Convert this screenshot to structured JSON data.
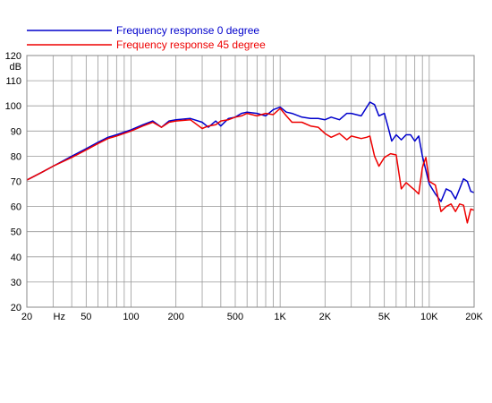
{
  "chart_data": {
    "type": "line",
    "title": "",
    "xlabel": "",
    "ylabel": "dB",
    "x_scale": "log",
    "xlim": [
      20,
      20000
    ],
    "ylim": [
      20,
      120
    ],
    "grid": true,
    "legend_position": "top",
    "y_ticks": [
      20,
      30,
      40,
      50,
      60,
      70,
      80,
      90,
      100,
      110,
      120
    ],
    "x_tick_labels": [
      {
        "value": 20,
        "label": "20"
      },
      {
        "value": 33,
        "label": "Hz"
      },
      {
        "value": 50,
        "label": "50"
      },
      {
        "value": 100,
        "label": "100"
      },
      {
        "value": 200,
        "label": "200"
      },
      {
        "value": 500,
        "label": "500"
      },
      {
        "value": 1000,
        "label": "1K"
      },
      {
        "value": 2000,
        "label": "2K"
      },
      {
        "value": 5000,
        "label": "5K"
      },
      {
        "value": 10000,
        "label": "10K"
      },
      {
        "value": 20000,
        "label": "20K"
      }
    ],
    "series": [
      {
        "name": "Frequency response 0 degree",
        "color": "#0000cc",
        "x": [
          20,
          25,
          30,
          40,
          50,
          60,
          70,
          80,
          100,
          120,
          140,
          160,
          180,
          200,
          250,
          300,
          330,
          370,
          400,
          450,
          500,
          550,
          600,
          700,
          800,
          900,
          1000,
          1100,
          1200,
          1400,
          1600,
          1800,
          2000,
          2200,
          2500,
          2800,
          3000,
          3500,
          4000,
          4300,
          4600,
          5000,
          5300,
          5600,
          6000,
          6500,
          7000,
          7500,
          8000,
          8500,
          9000,
          10000,
          11000,
          12000,
          13000,
          14000,
          15000,
          16000,
          17000,
          18000,
          19000,
          20000
        ],
        "y": [
          70.5,
          73.5,
          76,
          80,
          83,
          85.5,
          87.5,
          88.5,
          90.5,
          92.5,
          94,
          91.5,
          94,
          94.5,
          95,
          93.5,
          91.5,
          94,
          92,
          95,
          95.5,
          97,
          97.5,
          97,
          96,
          98.5,
          99.5,
          97.5,
          97,
          95.5,
          95,
          95,
          94.5,
          95.5,
          94.5,
          97,
          97,
          96,
          101.5,
          100.5,
          96,
          97,
          91.5,
          86,
          88.5,
          86.5,
          88.5,
          88.5,
          86,
          88,
          80,
          69,
          65,
          62,
          67,
          66,
          63,
          67,
          71,
          70,
          66,
          65.5
        ]
      },
      {
        "name": "Frequency response 45 degree",
        "color": "#ee0000",
        "x": [
          20,
          25,
          30,
          40,
          50,
          60,
          70,
          80,
          100,
          120,
          140,
          160,
          180,
          200,
          250,
          300,
          330,
          370,
          400,
          450,
          500,
          550,
          600,
          700,
          800,
          900,
          1000,
          1100,
          1200,
          1400,
          1600,
          1800,
          2000,
          2200,
          2500,
          2800,
          3000,
          3500,
          3800,
          4000,
          4300,
          4600,
          5000,
          5500,
          6000,
          6500,
          7000,
          8000,
          8500,
          9000,
          9500,
          10000,
          11000,
          12000,
          13000,
          14000,
          15000,
          16000,
          17000,
          18000,
          19000,
          20000
        ],
        "y": [
          70.5,
          73.5,
          76,
          79.5,
          82.5,
          85,
          87,
          88,
          90,
          92,
          93.5,
          91.5,
          93.5,
          94,
          94.5,
          91,
          92,
          92.5,
          94,
          94.5,
          95.5,
          96,
          97,
          96,
          97,
          96.5,
          99,
          96,
          93.5,
          93.5,
          92,
          91.5,
          89,
          87.5,
          89,
          86.5,
          88,
          87,
          87.5,
          88,
          80,
          76,
          79.5,
          81,
          80.5,
          67,
          69.5,
          66.5,
          65,
          75.5,
          79.5,
          70,
          68.5,
          58,
          60,
          61,
          58,
          61,
          60.5,
          53.5,
          59,
          58.5
        ]
      }
    ]
  }
}
